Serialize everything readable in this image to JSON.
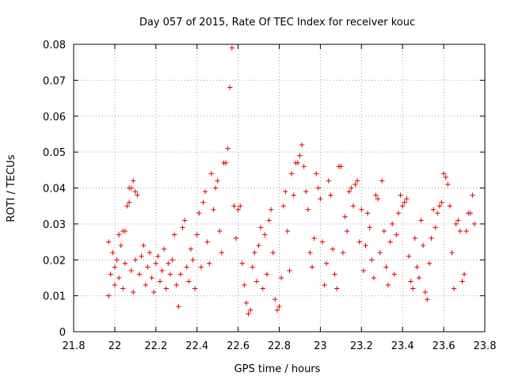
{
  "chart_data": {
    "type": "scatter",
    "title": "Day 057 of 2015, Rate Of TEC Index for receiver kouc",
    "xlabel": "GPS time / hours",
    "ylabel": "ROTI / TECUs",
    "xlim": [
      21.8,
      23.8
    ],
    "ylim": [
      0,
      0.08
    ],
    "xticks": [
      "21.8",
      "22",
      "22.2",
      "22.4",
      "22.6",
      "22.8",
      "23",
      "23.2",
      "23.4",
      "23.6",
      "23.8"
    ],
    "xtick_values": [
      21.8,
      22.0,
      22.2,
      22.4,
      22.6,
      22.8,
      23.0,
      23.2,
      23.4,
      23.6,
      23.8
    ],
    "yticks": [
      "0",
      "0.01",
      "0.02",
      "0.03",
      "0.04",
      "0.05",
      "0.06",
      "0.07",
      "0.08"
    ],
    "ytick_values": [
      0,
      0.01,
      0.02,
      0.03,
      0.04,
      0.05,
      0.06,
      0.07,
      0.08
    ],
    "grid": true,
    "marker": "+",
    "color": "#e00000",
    "x_data_range": [
      21.96,
      23.75
    ],
    "series": [
      {
        "name": "ROTI",
        "points": [
          [
            21.97,
            0.025
          ],
          [
            21.97,
            0.01
          ],
          [
            21.98,
            0.016
          ],
          [
            21.99,
            0.022
          ],
          [
            22.0,
            0.018
          ],
          [
            22.0,
            0.013
          ],
          [
            22.01,
            0.02
          ],
          [
            22.02,
            0.027
          ],
          [
            22.02,
            0.015
          ],
          [
            22.03,
            0.024
          ],
          [
            22.04,
            0.028
          ],
          [
            22.04,
            0.012
          ],
          [
            22.05,
            0.019
          ],
          [
            22.05,
            0.028
          ],
          [
            22.06,
            0.035
          ],
          [
            22.07,
            0.04
          ],
          [
            22.07,
            0.036
          ],
          [
            22.08,
            0.04
          ],
          [
            22.09,
            0.042
          ],
          [
            22.1,
            0.039
          ],
          [
            22.11,
            0.038
          ],
          [
            22.08,
            0.017
          ],
          [
            22.09,
            0.011
          ],
          [
            22.1,
            0.02
          ],
          [
            22.12,
            0.016
          ],
          [
            22.13,
            0.021
          ],
          [
            22.14,
            0.024
          ],
          [
            22.15,
            0.013
          ],
          [
            22.16,
            0.018
          ],
          [
            22.17,
            0.022
          ],
          [
            22.18,
            0.015
          ],
          [
            22.19,
            0.011
          ],
          [
            22.2,
            0.019
          ],
          [
            22.21,
            0.021
          ],
          [
            22.22,
            0.014
          ],
          [
            22.23,
            0.017
          ],
          [
            22.24,
            0.023
          ],
          [
            22.25,
            0.012
          ],
          [
            22.26,
            0.019
          ],
          [
            22.27,
            0.016
          ],
          [
            22.28,
            0.02
          ],
          [
            22.29,
            0.027
          ],
          [
            22.3,
            0.013
          ],
          [
            22.31,
            0.007
          ],
          [
            22.32,
            0.016
          ],
          [
            22.33,
            0.029
          ],
          [
            22.34,
            0.031
          ],
          [
            22.35,
            0.018
          ],
          [
            22.36,
            0.014
          ],
          [
            22.37,
            0.023
          ],
          [
            22.38,
            0.02
          ],
          [
            22.39,
            0.012
          ],
          [
            22.4,
            0.027
          ],
          [
            22.41,
            0.033
          ],
          [
            22.42,
            0.018
          ],
          [
            22.43,
            0.036
          ],
          [
            22.44,
            0.039
          ],
          [
            22.45,
            0.025
          ],
          [
            22.46,
            0.019
          ],
          [
            22.47,
            0.044
          ],
          [
            22.48,
            0.034
          ],
          [
            22.49,
            0.04
          ],
          [
            22.5,
            0.042
          ],
          [
            22.51,
            0.028
          ],
          [
            22.52,
            0.022
          ],
          [
            22.53,
            0.047
          ],
          [
            22.54,
            0.047
          ],
          [
            22.55,
            0.051
          ],
          [
            22.56,
            0.068
          ],
          [
            22.57,
            0.079
          ],
          [
            22.58,
            0.035
          ],
          [
            22.59,
            0.026
          ],
          [
            22.6,
            0.034
          ],
          [
            22.61,
            0.035
          ],
          [
            22.62,
            0.019
          ],
          [
            22.63,
            0.013
          ],
          [
            22.64,
            0.008
          ],
          [
            22.65,
            0.005
          ],
          [
            22.66,
            0.006
          ],
          [
            22.67,
            0.018
          ],
          [
            22.68,
            0.022
          ],
          [
            22.69,
            0.014
          ],
          [
            22.7,
            0.024
          ],
          [
            22.71,
            0.029
          ],
          [
            22.72,
            0.012
          ],
          [
            22.73,
            0.027
          ],
          [
            22.74,
            0.016
          ],
          [
            22.75,
            0.031
          ],
          [
            22.76,
            0.034
          ],
          [
            22.77,
            0.022
          ],
          [
            22.78,
            0.009
          ],
          [
            22.79,
            0.006
          ],
          [
            22.8,
            0.007
          ],
          [
            22.81,
            0.015
          ],
          [
            22.82,
            0.035
          ],
          [
            22.83,
            0.039
          ],
          [
            22.84,
            0.028
          ],
          [
            22.85,
            0.017
          ],
          [
            22.86,
            0.044
          ],
          [
            22.87,
            0.038
          ],
          [
            22.88,
            0.047
          ],
          [
            22.89,
            0.047
          ],
          [
            22.9,
            0.049
          ],
          [
            22.91,
            0.052
          ],
          [
            22.92,
            0.046
          ],
          [
            22.93,
            0.039
          ],
          [
            22.94,
            0.034
          ],
          [
            22.95,
            0.022
          ],
          [
            22.96,
            0.018
          ],
          [
            22.97,
            0.026
          ],
          [
            22.98,
            0.044
          ],
          [
            22.99,
            0.04
          ],
          [
            23.0,
            0.037
          ],
          [
            23.01,
            0.025
          ],
          [
            23.02,
            0.013
          ],
          [
            23.03,
            0.019
          ],
          [
            23.04,
            0.042
          ],
          [
            23.05,
            0.038
          ],
          [
            23.06,
            0.023
          ],
          [
            23.07,
            0.016
          ],
          [
            23.08,
            0.012
          ],
          [
            23.09,
            0.046
          ],
          [
            23.1,
            0.046
          ],
          [
            23.11,
            0.022
          ],
          [
            23.12,
            0.032
          ],
          [
            23.13,
            0.028
          ],
          [
            23.14,
            0.039
          ],
          [
            23.15,
            0.04
          ],
          [
            23.16,
            0.035
          ],
          [
            23.17,
            0.041
          ],
          [
            23.18,
            0.042
          ],
          [
            23.19,
            0.025
          ],
          [
            23.2,
            0.034
          ],
          [
            23.21,
            0.017
          ],
          [
            23.22,
            0.024
          ],
          [
            23.23,
            0.033
          ],
          [
            23.24,
            0.029
          ],
          [
            23.25,
            0.02
          ],
          [
            23.26,
            0.015
          ],
          [
            23.27,
            0.038
          ],
          [
            23.28,
            0.037
          ],
          [
            23.29,
            0.022
          ],
          [
            23.3,
            0.042
          ],
          [
            23.31,
            0.028
          ],
          [
            23.32,
            0.018
          ],
          [
            23.33,
            0.013
          ],
          [
            23.34,
            0.025
          ],
          [
            23.35,
            0.03
          ],
          [
            23.36,
            0.016
          ],
          [
            23.37,
            0.027
          ],
          [
            23.38,
            0.033
          ],
          [
            23.39,
            0.038
          ],
          [
            23.4,
            0.035
          ],
          [
            23.41,
            0.036
          ],
          [
            23.42,
            0.037
          ],
          [
            23.43,
            0.021
          ],
          [
            23.44,
            0.014
          ],
          [
            23.45,
            0.012
          ],
          [
            23.46,
            0.026
          ],
          [
            23.47,
            0.018
          ],
          [
            23.48,
            0.015
          ],
          [
            23.49,
            0.031
          ],
          [
            23.5,
            0.024
          ],
          [
            23.51,
            0.011
          ],
          [
            23.52,
            0.009
          ],
          [
            23.53,
            0.019
          ],
          [
            23.54,
            0.026
          ],
          [
            23.55,
            0.034
          ],
          [
            23.56,
            0.029
          ],
          [
            23.57,
            0.033
          ],
          [
            23.58,
            0.035
          ],
          [
            23.59,
            0.036
          ],
          [
            23.6,
            0.044
          ],
          [
            23.61,
            0.043
          ],
          [
            23.62,
            0.041
          ],
          [
            23.63,
            0.035
          ],
          [
            23.64,
            0.022
          ],
          [
            23.65,
            0.012
          ],
          [
            23.66,
            0.03
          ],
          [
            23.67,
            0.031
          ],
          [
            23.68,
            0.028
          ],
          [
            23.69,
            0.014
          ],
          [
            23.7,
            0.016
          ],
          [
            23.71,
            0.028
          ],
          [
            23.72,
            0.033
          ],
          [
            23.73,
            0.033
          ],
          [
            23.74,
            0.038
          ],
          [
            23.75,
            0.03
          ]
        ]
      }
    ]
  }
}
